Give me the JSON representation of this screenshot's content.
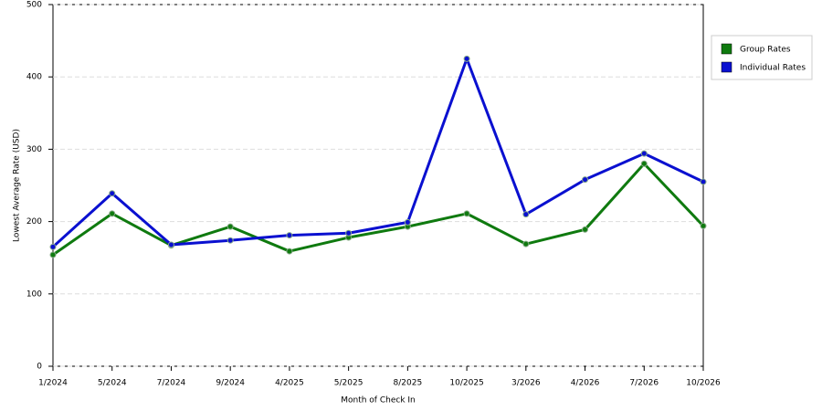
{
  "chart_data": {
    "type": "line",
    "x_label": "Month of Check In",
    "y_label": "Lowest Average Rate (USD)",
    "categories": [
      "1/2024",
      "5/2024",
      "7/2024",
      "9/2024",
      "4/2025",
      "5/2025",
      "8/2025",
      "10/2025",
      "3/2026",
      "4/2026",
      "7/2026",
      "10/2026"
    ],
    "series": [
      {
        "name": "Group Rates",
        "color": "#0f7a0f",
        "values": [
          154,
          211,
          167,
          193,
          159,
          178,
          193,
          211,
          169,
          189,
          280,
          194
        ]
      },
      {
        "name": "Individual Rates",
        "color": "#0a10d0",
        "values": [
          165,
          239,
          168,
          174,
          181,
          184,
          199,
          425,
          210,
          258,
          294,
          255
        ]
      }
    ],
    "ylim": [
      0,
      500
    ],
    "yticks": [
      0,
      100,
      200,
      300,
      400,
      500
    ],
    "grid": true,
    "legend": "right"
  }
}
